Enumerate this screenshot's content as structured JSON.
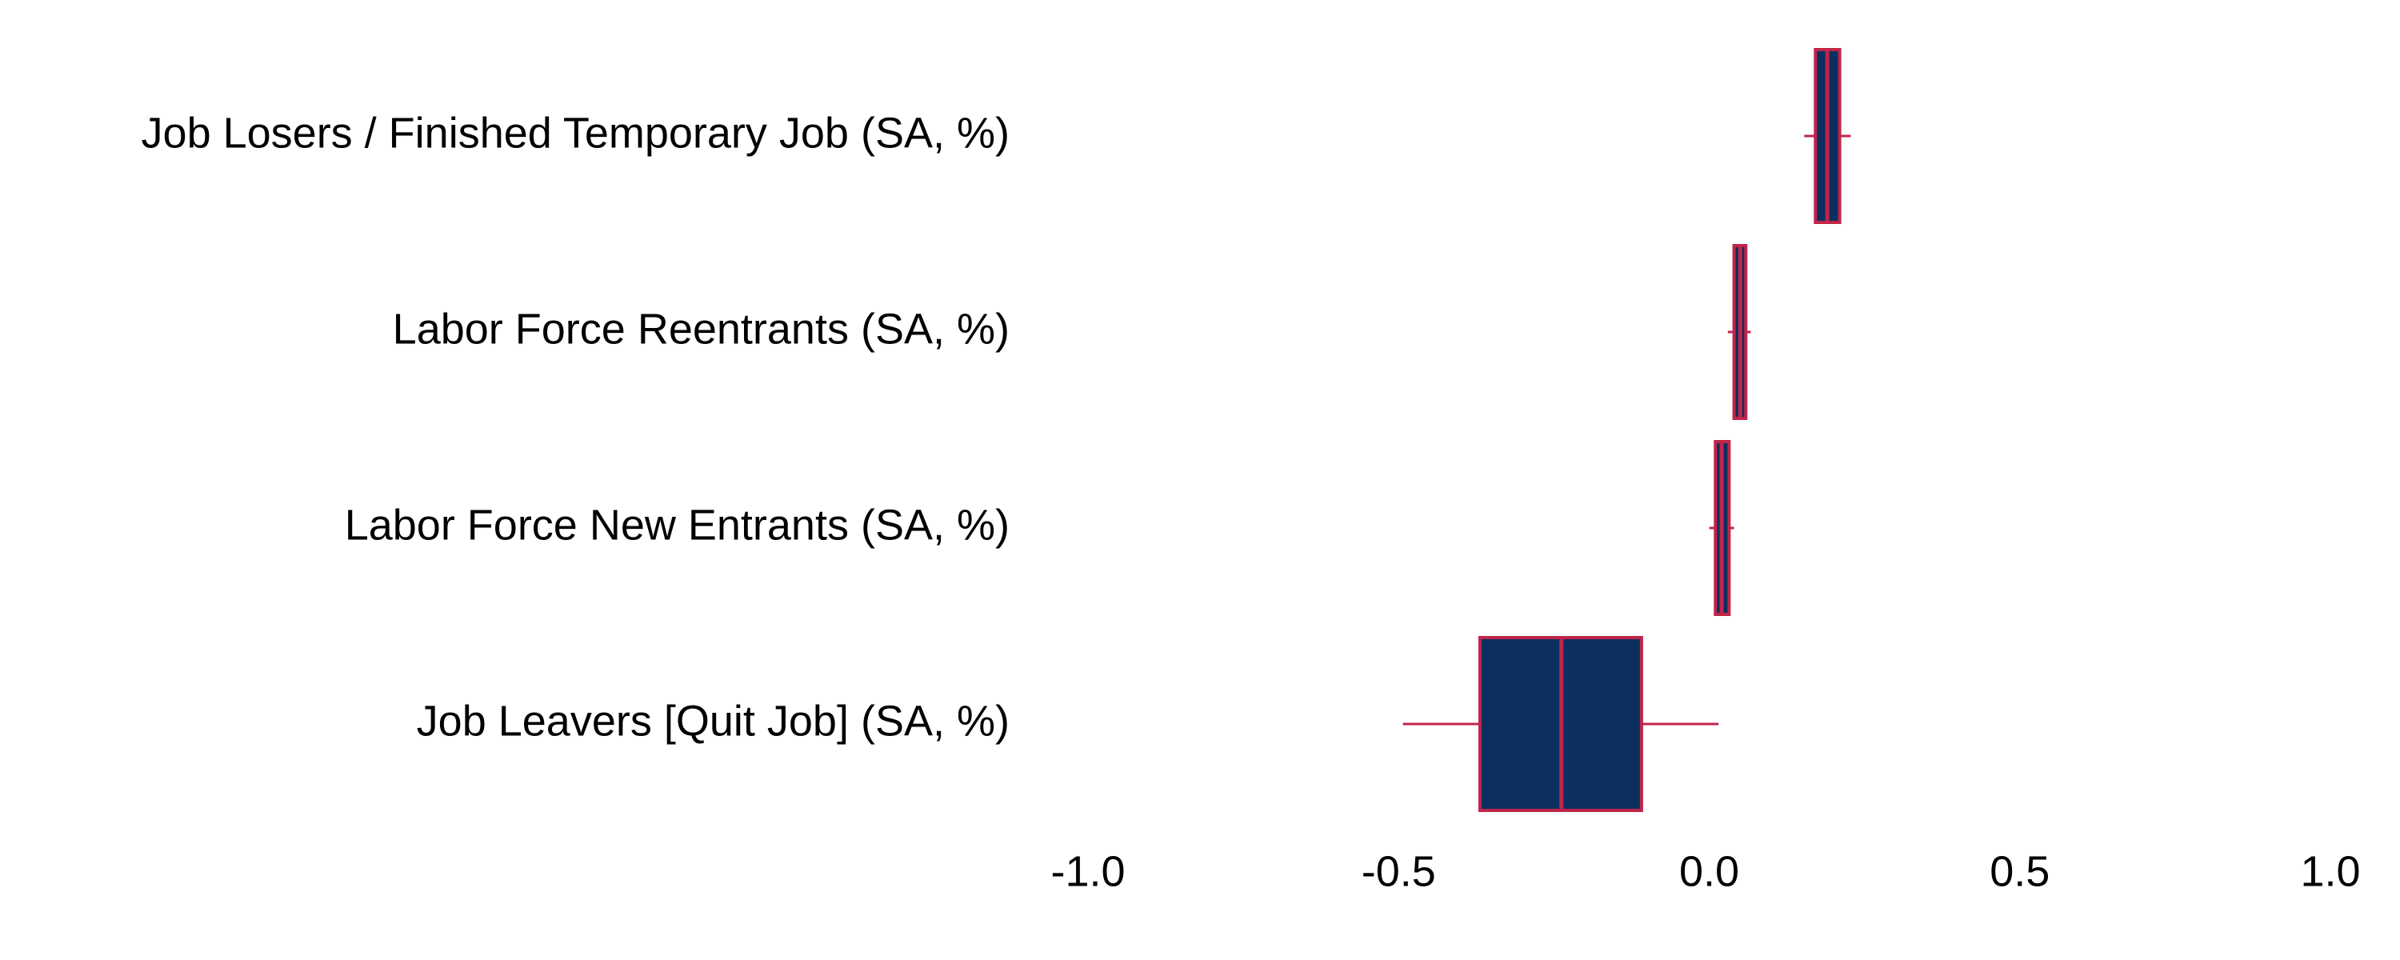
{
  "chart_data": {
    "type": "box",
    "categories": [
      "Job Losers / Finished Temporary Job (SA, %)",
      "Labor Force Reentrants (SA, %)",
      "Labor Force New Entrants (SA, %)",
      "Job Leavers [Quit Job] (SA, %)"
    ],
    "boxes": [
      {
        "whislo": 0.153,
        "q1": 0.171,
        "med": 0.19,
        "q3": 0.21,
        "whishi": 0.228
      },
      {
        "whislo": 0.03,
        "q1": 0.04,
        "med": 0.05,
        "q3": 0.059,
        "whishi": 0.067
      },
      {
        "whislo": 0.0,
        "q1": 0.01,
        "med": 0.02,
        "q3": 0.032,
        "whishi": 0.04
      },
      {
        "whislo": -0.493,
        "q1": -0.369,
        "med": -0.238,
        "q3": -0.109,
        "whishi": 0.015
      }
    ],
    "fill_color": "#0c2f5f",
    "line_color": "#c0254a",
    "xlim": [
      -1,
      1
    ],
    "xticks": [
      {
        "value": -1,
        "label": "-1.0"
      },
      -0.5,
      {
        "value": 0,
        "label": "0.0"
      },
      0.5,
      {
        "value": 1,
        "label": "1.0"
      }
    ],
    "grid": false
  }
}
